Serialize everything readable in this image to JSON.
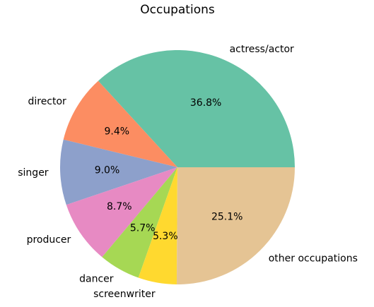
{
  "chart_data": {
    "type": "pie",
    "title": "Occupations",
    "slices": [
      {
        "label": "actress/actor",
        "value": 36.8,
        "pct_label": "36.8%",
        "color": "#66c2a5"
      },
      {
        "label": "director",
        "value": 9.4,
        "pct_label": "9.4%",
        "color": "#fc8d62"
      },
      {
        "label": "singer",
        "value": 9.0,
        "pct_label": "9.0%",
        "color": "#8da0cb"
      },
      {
        "label": "producer",
        "value": 8.7,
        "pct_label": "8.7%",
        "color": "#e78ac3"
      },
      {
        "label": "dancer",
        "value": 5.7,
        "pct_label": "5.7%",
        "color": "#a6d854"
      },
      {
        "label": "screenwriter",
        "value": 5.3,
        "pct_label": "5.3%",
        "color": "#ffd92f"
      },
      {
        "label": "other occupations",
        "value": 25.1,
        "pct_label": "25.1%",
        "color": "#e5c494"
      }
    ],
    "start_angle_deg": 0,
    "direction": "counterclockwise"
  }
}
